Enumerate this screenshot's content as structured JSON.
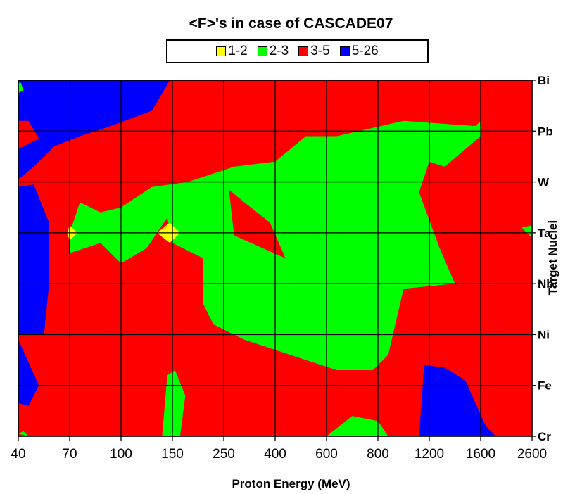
{
  "chart_data": {
    "type": "heatmap",
    "title": "<F>'s in case of CASCADE07",
    "xlabel": "Proton Energy (MeV)",
    "ylabel": "Target Nuclei",
    "x_categories": [
      "40",
      "70",
      "100",
      "150",
      "250",
      "400",
      "600",
      "800",
      "1200",
      "1600",
      "2600"
    ],
    "y_categories": [
      "Cr",
      "Fe",
      "Ni",
      "Nb",
      "Ta",
      "W",
      "Pb",
      "Bi"
    ],
    "legend": {
      "placement": "top-center",
      "entries": [
        {
          "label": "1-2",
          "color": "#ffff00"
        },
        {
          "label": "2-3",
          "color": "#00ff00"
        },
        {
          "label": "3-5",
          "color": "#ff0000"
        },
        {
          "label": "5-26",
          "color": "#0000ff"
        }
      ]
    },
    "grid": true,
    "regions": [
      {
        "range": "3-5",
        "points": [
          [
            0,
            0
          ],
          [
            10,
            0
          ],
          [
            10,
            7
          ],
          [
            0,
            7
          ]
        ]
      },
      {
        "range": "5-26",
        "points": [
          [
            0,
            6.2
          ],
          [
            0,
            7
          ],
          [
            2.95,
            7
          ],
          [
            2.6,
            6.4
          ],
          [
            1.8,
            6.1
          ],
          [
            1.2,
            5.9
          ],
          [
            0.7,
            5.7
          ],
          [
            0.3,
            5.3
          ],
          [
            0,
            5.05
          ]
        ]
      },
      {
        "range": "3-5",
        "points": [
          [
            0,
            6.2
          ],
          [
            0,
            5.65
          ],
          [
            0.4,
            5.85
          ],
          [
            0.2,
            6.2
          ]
        ]
      },
      {
        "range": "2-3",
        "points": [
          [
            0,
            6.95
          ],
          [
            0.05,
            6.95
          ],
          [
            0.1,
            6.8
          ],
          [
            0,
            6.75
          ]
        ]
      },
      {
        "range": "5-26",
        "points": [
          [
            0,
            4.9
          ],
          [
            0.3,
            4.95
          ],
          [
            0.6,
            4.2
          ],
          [
            0.6,
            3.0
          ],
          [
            0.5,
            2.0
          ],
          [
            0,
            2.0
          ]
        ]
      },
      {
        "range": "5-26",
        "points": [
          [
            0,
            1.9
          ],
          [
            0.4,
            1.0
          ],
          [
            0.2,
            0.6
          ],
          [
            0,
            0.65
          ]
        ]
      },
      {
        "range": "5-26",
        "points": [
          [
            7.8,
            0
          ],
          [
            7.9,
            1.4
          ],
          [
            8.3,
            1.35
          ],
          [
            8.7,
            1.1
          ],
          [
            9.1,
            0.2
          ],
          [
            9.3,
            0
          ]
        ]
      },
      {
        "range": "2-3",
        "points": [
          [
            1.0,
            4.0
          ],
          [
            1.2,
            4.6
          ],
          [
            1.6,
            4.4
          ],
          [
            2.0,
            4.5
          ],
          [
            2.6,
            4.9
          ],
          [
            3.3,
            5.0
          ],
          [
            4.2,
            5.3
          ],
          [
            5.0,
            5.4
          ],
          [
            5.6,
            5.9
          ],
          [
            6.2,
            5.9
          ],
          [
            7.5,
            6.2
          ],
          [
            8.9,
            6.1
          ],
          [
            9.0,
            6.2
          ],
          [
            9.0,
            5.9
          ],
          [
            8.3,
            5.3
          ],
          [
            8.0,
            5.4
          ],
          [
            7.8,
            4.8
          ],
          [
            8.2,
            3.7
          ],
          [
            8.5,
            3.0
          ],
          [
            7.5,
            2.9
          ],
          [
            7.2,
            1.6
          ],
          [
            6.9,
            1.3
          ],
          [
            6.2,
            1.3
          ],
          [
            5.6,
            1.5
          ],
          [
            4.4,
            1.9
          ],
          [
            3.8,
            2.2
          ],
          [
            3.6,
            2.6
          ],
          [
            3.6,
            3.5
          ],
          [
            3.0,
            3.8
          ],
          [
            2.9,
            4.3
          ],
          [
            2.5,
            3.7
          ],
          [
            2.0,
            3.4
          ],
          [
            1.6,
            3.8
          ],
          [
            1.0,
            3.6
          ]
        ]
      },
      {
        "range": "3-5",
        "points": [
          [
            4.1,
            4.85
          ],
          [
            4.2,
            3.95
          ],
          [
            4.75,
            3.7
          ],
          [
            5.2,
            3.5
          ],
          [
            4.9,
            4.2
          ],
          [
            4.4,
            4.6
          ]
        ]
      },
      {
        "range": "2-3",
        "points": [
          [
            2.8,
            0
          ],
          [
            2.9,
            1.2
          ],
          [
            3.05,
            1.3
          ],
          [
            3.25,
            0.8
          ],
          [
            3.15,
            0
          ]
        ]
      },
      {
        "range": "2-3",
        "points": [
          [
            6.0,
            0
          ],
          [
            6.5,
            0.4
          ],
          [
            7.0,
            0.3
          ],
          [
            7.2,
            0
          ],
          [
            7.05,
            0
          ]
        ]
      },
      {
        "range": "2-3",
        "points": [
          [
            0,
            0.05
          ],
          [
            0.1,
            0.1
          ],
          [
            0.2,
            0
          ]
        ]
      },
      {
        "range": "2-3",
        "points": [
          [
            10.0,
            3.9
          ],
          [
            9.8,
            4.1
          ],
          [
            10.0,
            4.15
          ]
        ]
      },
      {
        "range": "1-2",
        "points": [
          [
            1.0,
            4.15
          ],
          [
            1.15,
            4.0
          ],
          [
            1.0,
            3.85
          ],
          [
            0.95,
            4.0
          ]
        ]
      },
      {
        "range": "1-2",
        "points": [
          [
            2.95,
            4.2
          ],
          [
            3.15,
            4.0
          ],
          [
            2.95,
            3.8
          ],
          [
            2.7,
            4.0
          ]
        ]
      }
    ]
  }
}
